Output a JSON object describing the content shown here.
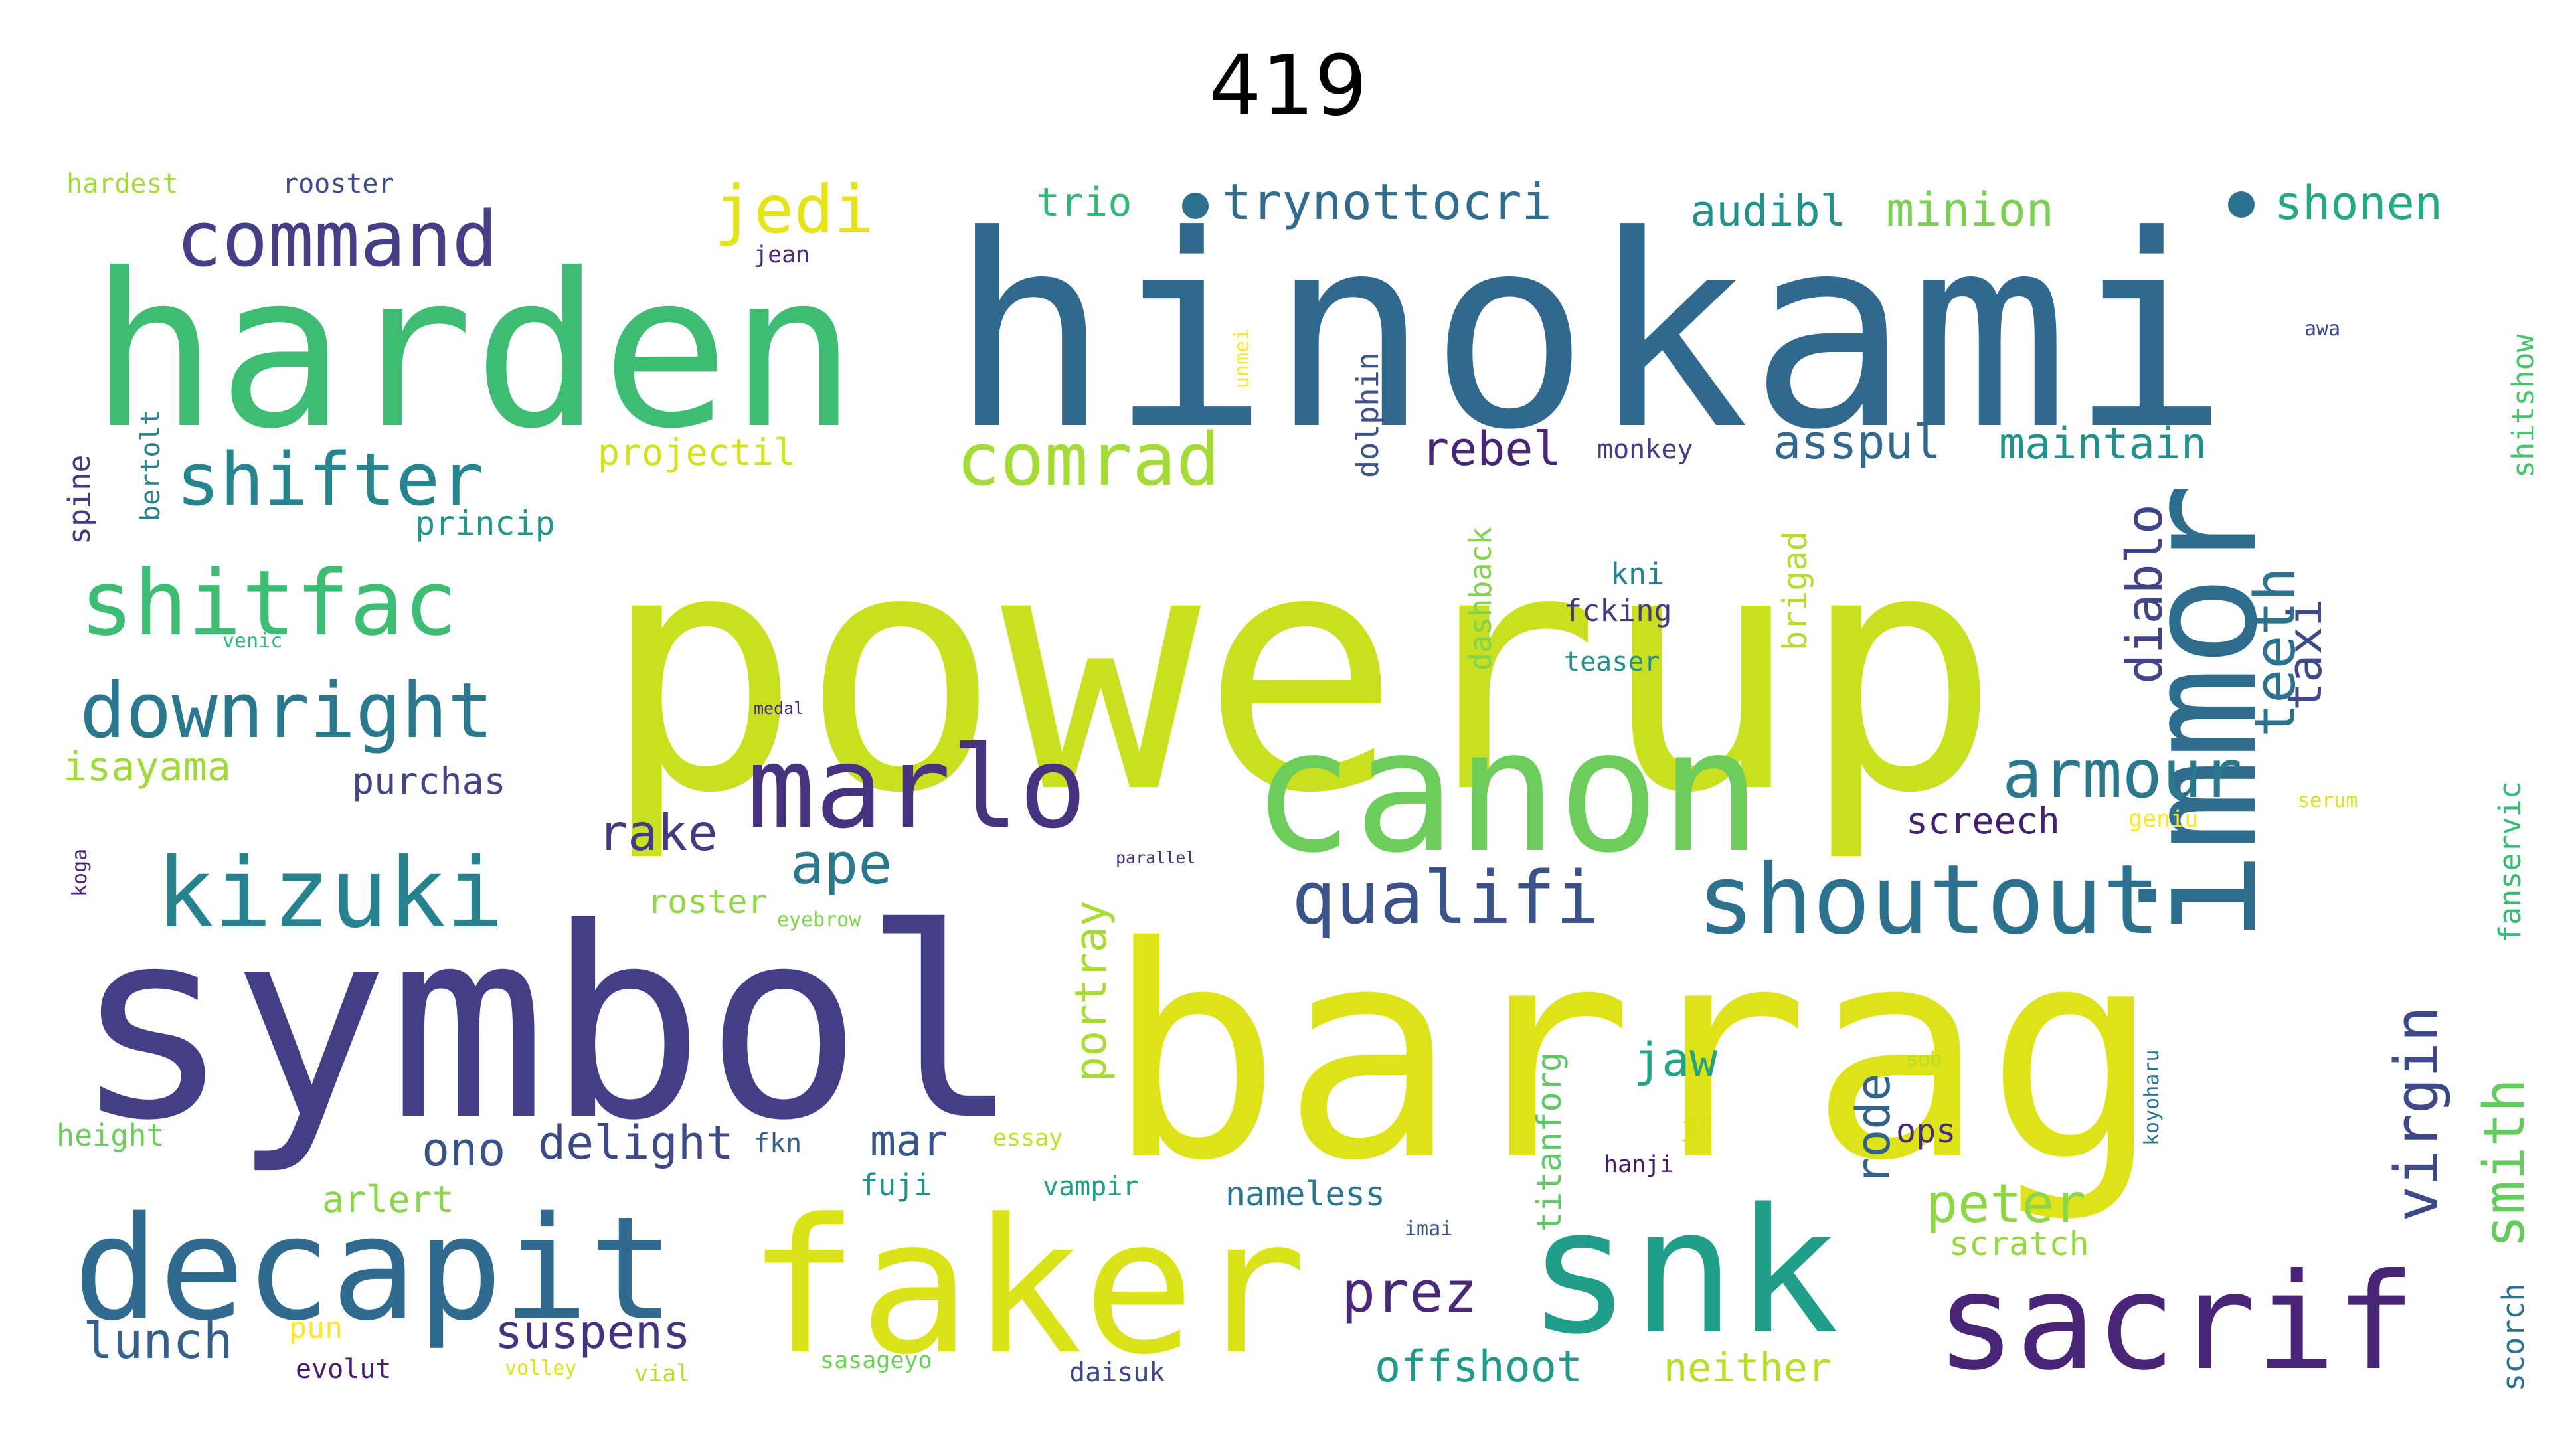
{
  "title": "419",
  "words": [
    {
      "text": "powerup",
      "color": "#c8e020"
    },
    {
      "text": "hinokami",
      "color": "#31688e"
    },
    {
      "text": "harden",
      "color": "#3fbc73"
    },
    {
      "text": "symbol",
      "color": "#433e85"
    },
    {
      "text": "barrag",
      "color": "#dde318"
    },
    {
      "text": "canon",
      "color": "#6ccd5a"
    },
    {
      "text": "immor",
      "color": "#2e6d8e"
    },
    {
      "text": "faker",
      "color": "#dae319"
    },
    {
      "text": "snk",
      "color": "#1f9e89"
    },
    {
      "text": "marlo",
      "color": "#46327e"
    },
    {
      "text": "decapit",
      "color": "#306a8e"
    },
    {
      "text": "sacrif",
      "color": "#482576"
    },
    {
      "text": "shoutout",
      "color": "#2c728e"
    },
    {
      "text": "kizuki",
      "color": "#26828e"
    },
    {
      "text": "shitfac",
      "color": "#3dbc74"
    },
    {
      "text": "command",
      "color": "#433e85"
    },
    {
      "text": "downright",
      "color": "#2a788e"
    },
    {
      "text": "armour",
      "color": "#2a788e"
    },
    {
      "text": "qualifi",
      "color": "#3b528b"
    },
    {
      "text": "shifter",
      "color": "#25858e"
    },
    {
      "text": "comrad",
      "color": "#a5db36"
    },
    {
      "text": "jedi",
      "color": "#e5e419"
    },
    {
      "text": "ape",
      "color": "#2a788e"
    },
    {
      "text": "virgin",
      "color": "#3e4989"
    },
    {
      "text": "smith",
      "color": "#65cb5e"
    },
    {
      "text": "teeth",
      "color": "#2c728e"
    },
    {
      "text": "peter",
      "color": "#8ed645"
    },
    {
      "text": "prez",
      "color": "#482878"
    },
    {
      "text": "trynottocri",
      "color": "#2f6c8e"
    },
    {
      "text": "shonen",
      "color": "#22a884"
    },
    {
      "text": "audibl",
      "color": "#21918c"
    },
    {
      "text": "minion",
      "color": "#7ad151"
    },
    {
      "text": "rebel",
      "color": "#482475"
    },
    {
      "text": "asspul",
      "color": "#31688e"
    },
    {
      "text": "maintain",
      "color": "#21918c"
    },
    {
      "text": "trio",
      "color": "#35b779"
    },
    {
      "text": "diablo",
      "color": "#414487"
    },
    {
      "text": "taxi",
      "color": "#3e4a89"
    },
    {
      "text": "rake",
      "color": "#443983"
    },
    {
      "text": "suspens",
      "color": "#46327e"
    },
    {
      "text": "offshoot",
      "color": "#1f9a8a"
    },
    {
      "text": "neither",
      "color": "#b5de2b"
    },
    {
      "text": "lunch",
      "color": "#355f8d"
    },
    {
      "text": "ono",
      "color": "#3b528b"
    },
    {
      "text": "delight",
      "color": "#3e4989"
    },
    {
      "text": "mar",
      "color": "#39568c"
    },
    {
      "text": "jaw",
      "color": "#20a486"
    },
    {
      "text": "rode",
      "color": "#33638d"
    },
    {
      "text": "portray",
      "color": "#a8db34"
    },
    {
      "text": "screech",
      "color": "#482071"
    },
    {
      "text": "isayama",
      "color": "#9fda3a"
    },
    {
      "text": "purchas",
      "color": "#414487"
    },
    {
      "text": "projectil",
      "color": "#d2e21b"
    },
    {
      "text": "arlert",
      "color": "#8bd646"
    },
    {
      "text": "nameless",
      "color": "#2a768e"
    },
    {
      "text": "scratch",
      "color": "#95d840"
    },
    {
      "text": "ops",
      "color": "#472d7b"
    },
    {
      "text": "kni",
      "color": "#26828e"
    },
    {
      "text": "fcking",
      "color": "#453781"
    },
    {
      "text": "teaser",
      "color": "#21908d"
    },
    {
      "text": "monkey",
      "color": "#433e85"
    },
    {
      "text": "dolphin",
      "color": "#3b528b"
    },
    {
      "text": "brigad",
      "color": "#b2dd2d"
    },
    {
      "text": "dashback",
      "color": "#7fd34e"
    },
    {
      "text": "titanforg",
      "color": "#5ec962"
    },
    {
      "text": "fanservic",
      "color": "#3aba76"
    },
    {
      "text": "shitshow",
      "color": "#4ac16d"
    },
    {
      "text": "scorch",
      "color": "#2d708e"
    },
    {
      "text": "koyoharu",
      "color": "#2a788e"
    },
    {
      "text": "hanji",
      "color": "#48186a"
    },
    {
      "text": "fkn",
      "color": "#355f8d"
    },
    {
      "text": "fuji",
      "color": "#21918c"
    },
    {
      "text": "vampir",
      "color": "#1fa187"
    },
    {
      "text": "imai",
      "color": "#3b528b"
    },
    {
      "text": "daisuk",
      "color": "#3e4989"
    },
    {
      "text": "sasageyo",
      "color": "#6ece58"
    },
    {
      "text": "vial",
      "color": "#b8de29"
    },
    {
      "text": "volley",
      "color": "#dde318"
    },
    {
      "text": "evolut",
      "color": "#481a6c"
    },
    {
      "text": "pun",
      "color": "#fde725"
    },
    {
      "text": "height",
      "color": "#6ccd5a"
    },
    {
      "text": "roster",
      "color": "#90d743"
    },
    {
      "text": "eyebrow",
      "color": "#7fd34e"
    },
    {
      "text": "parallel",
      "color": "#46337e"
    },
    {
      "text": "princip",
      "color": "#1f958b"
    },
    {
      "text": "venic",
      "color": "#35b779"
    },
    {
      "text": "medal",
      "color": "#482878"
    },
    {
      "text": "koga",
      "color": "#482677"
    },
    {
      "text": "spine",
      "color": "#453882"
    },
    {
      "text": "bertolt",
      "color": "#27808e"
    },
    {
      "text": "hardest",
      "color": "#a2da37"
    },
    {
      "text": "rooster",
      "color": "#3e4a89"
    },
    {
      "text": "jean",
      "color": "#472d7b"
    },
    {
      "text": "unmei",
      "color": "#fde725"
    },
    {
      "text": "jj",
      "color": "#d8e219"
    },
    {
      "text": "sob",
      "color": "#b5de2b"
    },
    {
      "text": "geniu",
      "color": "#fde725"
    },
    {
      "text": "serum",
      "color": "#dde318"
    },
    {
      "text": "essay",
      "color": "#c2df23"
    },
    {
      "text": "awa",
      "color": "#3e4a89"
    }
  ]
}
